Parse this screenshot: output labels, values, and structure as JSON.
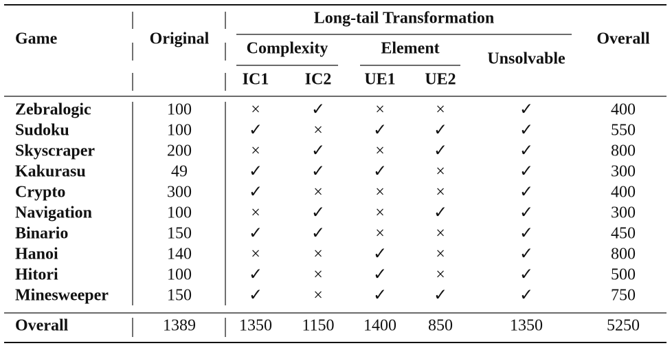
{
  "header": {
    "game": "Game",
    "original": "Original",
    "long_tail": "Long-tail Transformation",
    "complexity": "Complexity",
    "element": "Element",
    "unsolvable": "Unsolvable",
    "overall": "Overall",
    "ic1": "IC1",
    "ic2": "IC2",
    "ue1": "UE1",
    "ue2": "UE2"
  },
  "table": {
    "rows": [
      [
        "Zebralogic",
        100,
        "×",
        "✓",
        "×",
        "×",
        "✓",
        400
      ],
      [
        "Sudoku",
        100,
        "✓",
        "×",
        "✓",
        "✓",
        "✓",
        550
      ],
      [
        "Skyscraper",
        200,
        "×",
        "✓",
        "×",
        "✓",
        "✓",
        800
      ],
      [
        "Kakurasu",
        49,
        "✓",
        "✓",
        "✓",
        "×",
        "✓",
        300
      ],
      [
        "Crypto",
        300,
        "✓",
        "×",
        "×",
        "×",
        "✓",
        400
      ],
      [
        "Navigation",
        100,
        "×",
        "✓",
        "×",
        "✓",
        "✓",
        300
      ],
      [
        "Binario",
        150,
        "✓",
        "✓",
        "×",
        "×",
        "✓",
        450
      ],
      [
        "Hanoi",
        140,
        "×",
        "×",
        "✓",
        "×",
        "✓",
        800
      ],
      [
        "Hitori",
        100,
        "✓",
        "×",
        "✓",
        "×",
        "✓",
        500
      ],
      [
        "Minesweeper",
        150,
        "✓",
        "×",
        "✓",
        "✓",
        "✓",
        750
      ]
    ],
    "total": [
      "Overall",
      1389,
      1350,
      1150,
      1400,
      850,
      1350,
      5250
    ]
  }
}
